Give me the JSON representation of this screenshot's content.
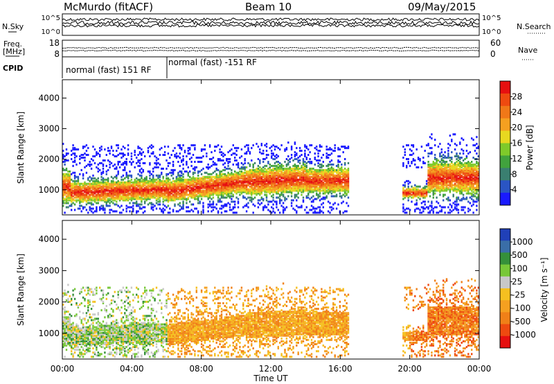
{
  "header": {
    "station": "McMurdo (fitACF)",
    "beam": "Beam 10",
    "date": "09/May/2015"
  },
  "colors": {
    "power_scale": [
      "#1a1aff",
      "#2a55c4",
      "#3a7f70",
      "#41a23d",
      "#7fca2a",
      "#e8d820",
      "#f5a020",
      "#f07818",
      "#ee4a10",
      "#e61010"
    ],
    "velocity_scale": [
      "#2040b8",
      "#3a6ea8",
      "#35903a",
      "#78c838",
      "#c8c8c8",
      "#f5c020",
      "#f5a020",
      "#f08018",
      "#ee4a10",
      "#e61010"
    ]
  },
  "chart_data": [
    {
      "type": "line",
      "name": "noise-panel",
      "left_label": "N.Sky",
      "right_label": "N.Search",
      "left_ticks": [
        "10^5",
        "10^0"
      ],
      "right_ticks": [
        "10^5",
        "10^0"
      ],
      "ylim": [
        1,
        100000
      ],
      "yscale": "log"
    },
    {
      "type": "scatter",
      "name": "frequency-panel",
      "left_label": "Freq.",
      "left_unit": "[MHz]",
      "left_ticks": [
        "18",
        "8"
      ],
      "right_label": "Nave",
      "right_ticks": [
        "60",
        "0"
      ],
      "cpid_label": "CPID",
      "cpid_segments": [
        {
          "label": "normal (fast) 151 RF",
          "start_hour": 0,
          "end_hour": 6
        },
        {
          "label": "normal (fast) -151 RF",
          "start_hour": 6,
          "end_hour": 24
        }
      ]
    },
    {
      "type": "heatmap",
      "name": "power",
      "ylabel": "Slant Range [km]",
      "colorbar_label": "Power [dB]",
      "colorbar_ticks": [
        "28",
        "24",
        "20",
        "16",
        "12",
        "8",
        "4"
      ],
      "colorbar_range": [
        0,
        32
      ],
      "ylim": [
        180,
        4600
      ],
      "yticks": [
        "1000",
        "2000",
        "3000",
        "4000"
      ],
      "xlim": [
        0,
        24
      ]
    },
    {
      "type": "heatmap",
      "name": "velocity",
      "ylabel": "Slant Range [km]",
      "colorbar_label": "Velocity [m s⁻¹]",
      "colorbar_ticks": [
        "1000",
        "500",
        "100",
        "25",
        "-25",
        "-100",
        "-500",
        "-1000"
      ],
      "ylim": [
        180,
        4600
      ],
      "yticks": [
        "1000",
        "2000",
        "3000",
        "4000"
      ],
      "xlim": [
        0,
        24
      ]
    }
  ],
  "time_axis": {
    "xlabel": "Time UT",
    "ticks": [
      "00:00",
      "04:00",
      "08:00",
      "12:00",
      "16:00",
      "20:00",
      "00:00"
    ],
    "tick_hours": [
      0,
      4,
      8,
      12,
      16,
      20,
      24
    ]
  }
}
